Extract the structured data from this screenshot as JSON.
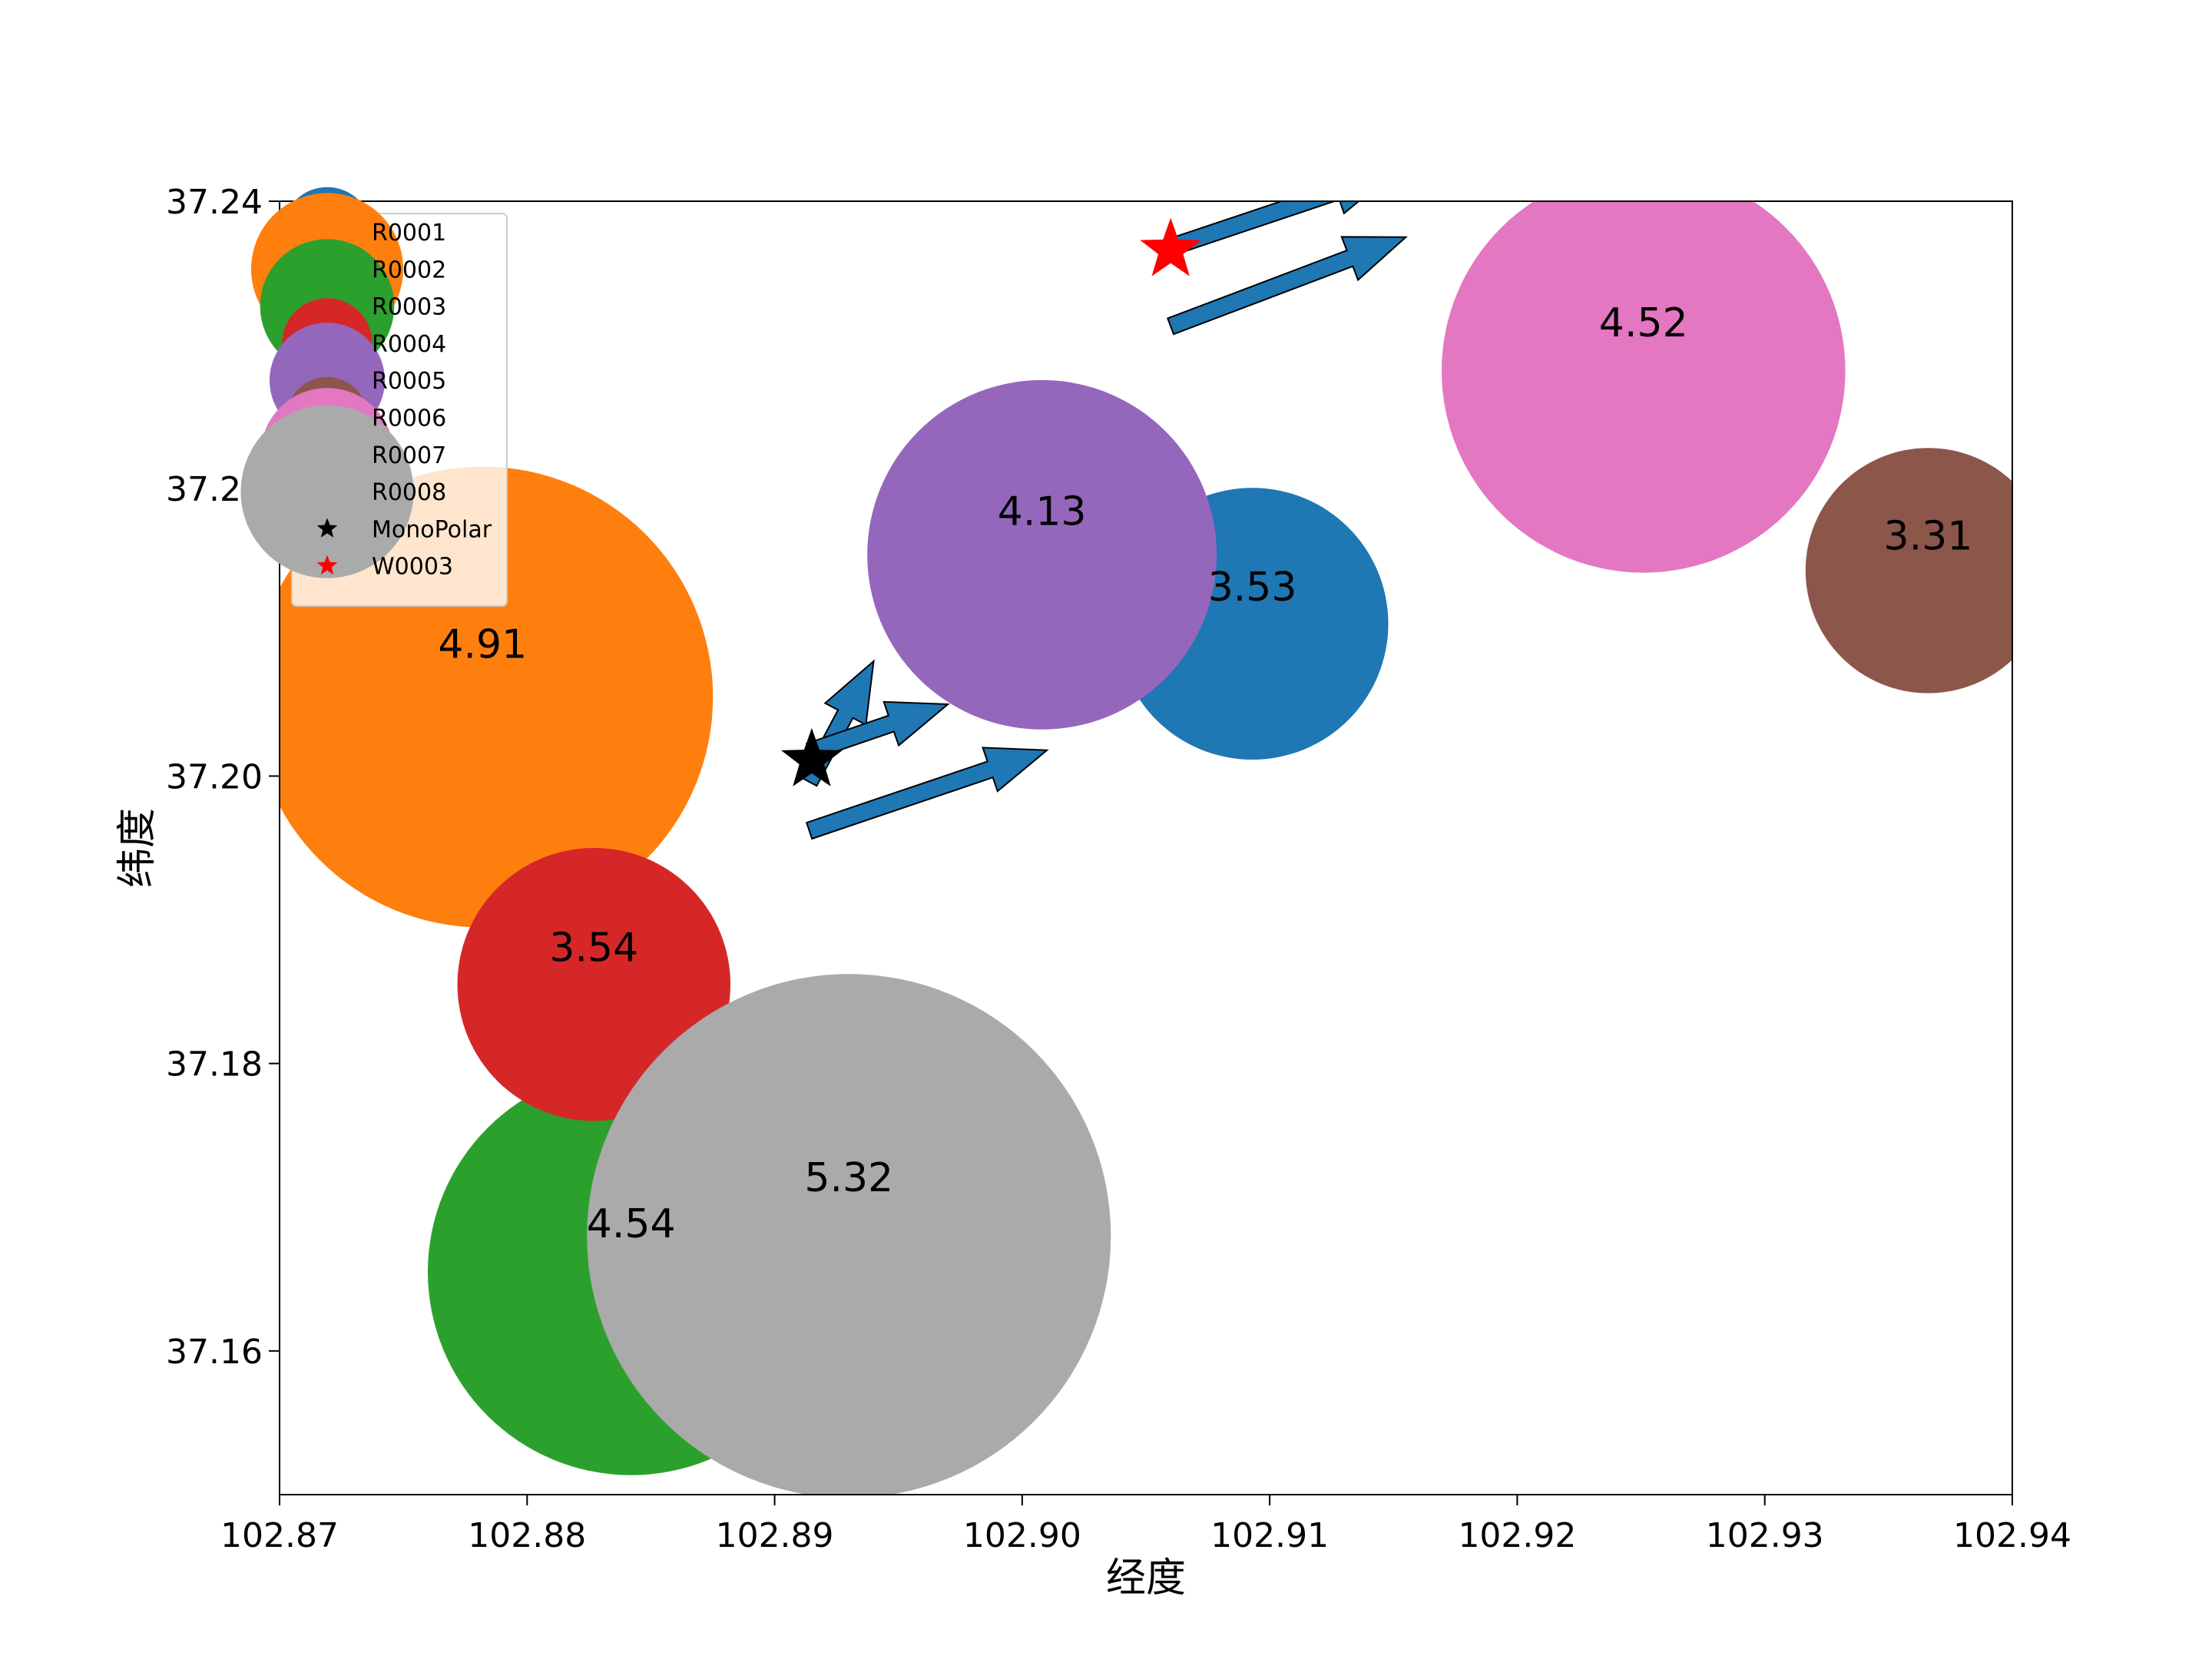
{
  "chart_data": {
    "type": "scatter",
    "title": "",
    "xlabel": "经度",
    "ylabel": "纬度",
    "xlim": [
      102.87,
      102.94
    ],
    "ylim": [
      37.15,
      37.24
    ],
    "xticks": [
      102.87,
      102.88,
      102.89,
      102.9,
      102.91,
      102.92,
      102.93,
      102.94
    ],
    "xtick_labels": [
      "102.87",
      "102.88",
      "102.89",
      "102.90",
      "102.91",
      "102.92",
      "102.93",
      "102.94"
    ],
    "yticks": [
      37.16,
      37.18,
      37.2,
      37.22,
      37.24
    ],
    "ytick_labels": [
      "37.16",
      "37.18",
      "37.20",
      "37.22",
      "37.24"
    ],
    "grid": false,
    "legend_position": "top-left",
    "series": [
      {
        "name": "R0001",
        "type": "bubble",
        "x": 102.9093,
        "y": 37.2106,
        "magnitude": 3.53,
        "label": "3.53",
        "color": "#1f77b4"
      },
      {
        "name": "R0002",
        "type": "bubble",
        "x": 102.8782,
        "y": 37.2055,
        "magnitude": 4.91,
        "label": "4.91",
        "color": "#ff7f0e"
      },
      {
        "name": "R0003",
        "type": "bubble",
        "x": 102.8842,
        "y": 37.1655,
        "magnitude": 4.54,
        "label": "4.54",
        "color": "#2ca02c"
      },
      {
        "name": "R0004",
        "type": "bubble",
        "x": 102.8827,
        "y": 37.1855,
        "magnitude": 3.54,
        "label": "3.54",
        "color": "#d62728"
      },
      {
        "name": "R0005",
        "type": "bubble",
        "x": 102.9008,
        "y": 37.2154,
        "magnitude": 4.13,
        "label": "4.13",
        "color": "#9467bd"
      },
      {
        "name": "R0006",
        "type": "bubble",
        "x": 102.9366,
        "y": 37.2143,
        "magnitude": 3.31,
        "label": "3.31",
        "color": "#8c564b"
      },
      {
        "name": "R0007",
        "type": "bubble",
        "x": 102.9251,
        "y": 37.2282,
        "magnitude": 4.52,
        "label": "4.52",
        "color": "#e377c2"
      },
      {
        "name": "R0008",
        "type": "bubble",
        "x": 102.893,
        "y": 37.168,
        "magnitude": 5.32,
        "label": "5.32",
        "color": "#aaaaaa"
      },
      {
        "name": "MonoPolar",
        "type": "star",
        "x": 102.8915,
        "y": 37.2011,
        "color": "#000000"
      },
      {
        "name": "W0003",
        "type": "star",
        "x": 102.906,
        "y": 37.2366,
        "color": "#ff0000"
      }
    ],
    "arrows": [
      {
        "x0": 102.8914,
        "y0": 37.1996,
        "x1": 102.894,
        "y1": 37.208,
        "color": "#1f77b4"
      },
      {
        "x0": 102.8914,
        "y0": 37.2017,
        "x1": 102.897,
        "y1": 37.205,
        "color": "#1f77b4"
      },
      {
        "x0": 102.8914,
        "y0": 37.1962,
        "x1": 102.901,
        "y1": 37.2018,
        "color": "#1f77b4"
      },
      {
        "x0": 102.906,
        "y0": 37.2368,
        "x1": 102.915,
        "y1": 37.242,
        "color": "#1f77b4"
      },
      {
        "x0": 102.906,
        "y0": 37.2313,
        "x1": 102.9155,
        "y1": 37.2375,
        "color": "#1f77b4"
      }
    ]
  }
}
